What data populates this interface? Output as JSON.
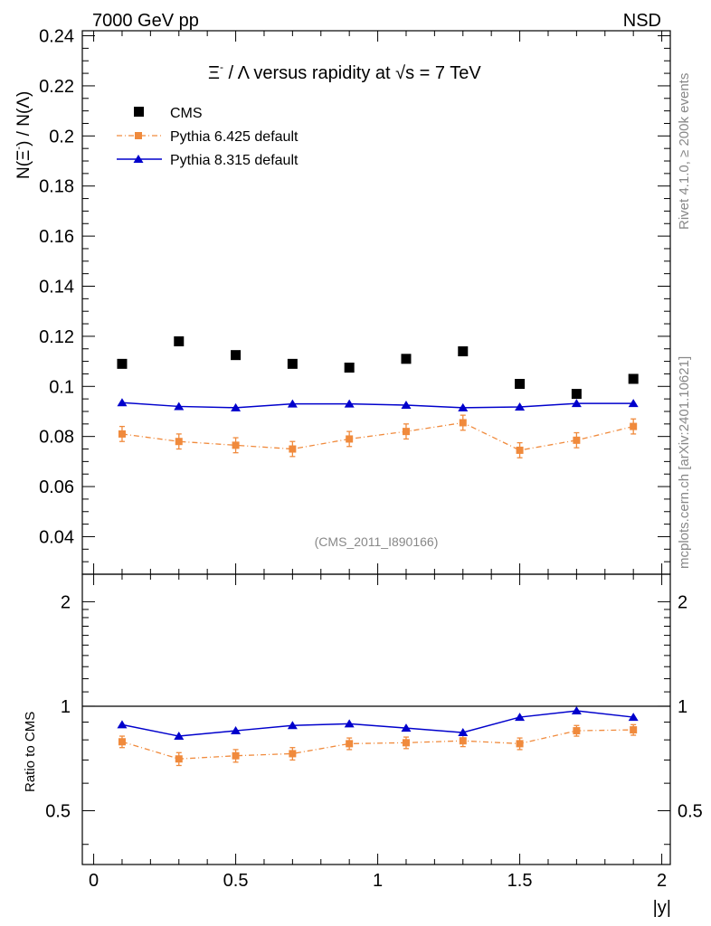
{
  "header": {
    "left": "7000 GeV pp",
    "right": "NSD"
  },
  "side_label_top": "Rivet 4.1.0, ≥ 200k events",
  "side_label_bottom": "mcplots.cern.ch [arXiv:2401.10621]",
  "analysis_id": "(CMS_2011_I890166)",
  "chart_data": {
    "type": "scatter",
    "title": "Ξ⁻ / Λ versus rapidity at √s = 7 TeV",
    "title_parts": {
      "pre": "Ξ",
      "sup": "-",
      "mid": " / Λ versus rapidity at ",
      "sqrt": "√",
      "post": "s = 7 TeV"
    },
    "xlabel": "|y|",
    "ylabel": "N(Ξ⁻)  /  N(Λ)",
    "ylabel_parts": {
      "a": "N(Ξ",
      "sup": "-",
      "b": ")  /  N(Λ)"
    },
    "ratio_ylabel": "Ratio to CMS",
    "xlim": [
      -0.04,
      2.03
    ],
    "ylim": [
      0.025,
      0.242
    ],
    "ratio_ylim": [
      0.35,
      2.4
    ],
    "x_ticks": [
      0,
      0.5,
      1,
      1.5,
      2
    ],
    "x_tick_labels": [
      "0",
      "0.5",
      "1",
      "1.5",
      "2"
    ],
    "y_ticks": [
      0.04,
      0.06,
      0.08,
      0.1,
      0.12,
      0.14,
      0.16,
      0.18,
      0.2,
      0.22,
      0.24
    ],
    "y_tick_labels": [
      "0.04",
      "0.06",
      "0.08",
      "0.1",
      "0.12",
      "0.14",
      "0.16",
      "0.18",
      "0.2",
      "0.22",
      "0.24"
    ],
    "ratio_ticks": [
      0.5,
      1,
      2
    ],
    "ratio_tick_labels": [
      "0.5",
      "1",
      "2"
    ],
    "x": [
      0.1,
      0.3,
      0.5,
      0.7,
      0.9,
      1.1,
      1.3,
      1.5,
      1.7,
      1.9
    ],
    "series": [
      {
        "name": "CMS",
        "color": "#000000",
        "marker": "square",
        "line": "none",
        "values": [
          0.109,
          0.118,
          0.1125,
          0.109,
          0.1075,
          0.111,
          0.114,
          0.101,
          0.097,
          0.103
        ]
      },
      {
        "name": "Pythia 6.425 default",
        "color": "#f08a3c",
        "marker": "square",
        "line": "dashdot",
        "values": [
          0.081,
          0.078,
          0.0765,
          0.075,
          0.079,
          0.082,
          0.0855,
          0.0745,
          0.0785,
          0.084
        ],
        "errors": [
          0.003,
          0.003,
          0.003,
          0.003,
          0.003,
          0.003,
          0.003,
          0.003,
          0.003,
          0.003
        ],
        "ratio": [
          0.79,
          0.705,
          0.72,
          0.73,
          0.78,
          0.785,
          0.795,
          0.78,
          0.85,
          0.855
        ],
        "ratio_errors": [
          0.03,
          0.03,
          0.03,
          0.03,
          0.03,
          0.03,
          0.03,
          0.03,
          0.03,
          0.03
        ]
      },
      {
        "name": "Pythia 8.315 default",
        "color": "#0000cc",
        "marker": "triangle",
        "line": "solid",
        "values": [
          0.0935,
          0.092,
          0.0915,
          0.093,
          0.093,
          0.0925,
          0.0915,
          0.0918,
          0.0932,
          0.0932
        ],
        "ratio": [
          0.885,
          0.82,
          0.85,
          0.88,
          0.89,
          0.865,
          0.84,
          0.93,
          0.97,
          0.93
        ]
      }
    ],
    "legend": {
      "placement": "top-left",
      "entries": [
        "CMS",
        "Pythia 6.425 default",
        "Pythia 8.315 default"
      ]
    }
  }
}
